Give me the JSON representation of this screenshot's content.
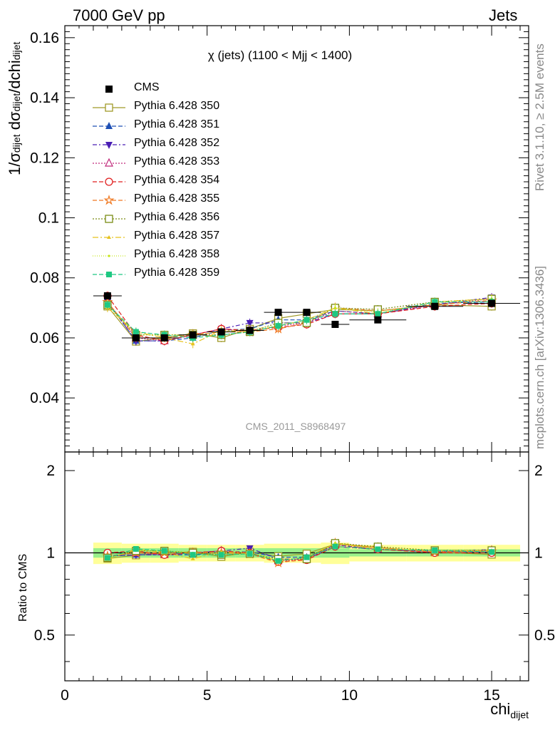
{
  "header": {
    "left": "7000 GeV pp",
    "right": "Jets"
  },
  "side_labels": {
    "rivet": "Rivet 3.1.10, ≥ 2.5M events",
    "mcplots": "mcplots.cern.ch [arXiv:1306.3436]"
  },
  "axes": {
    "ylabel_main": "1/σdijet dσdijet/dchidijet",
    "ylabel_ratio": "Ratio to CMS",
    "xlabel": "chidijet"
  },
  "chart_data": {
    "type": "scatter",
    "title": "χ (jets) (1100 < Mjj < 1400)",
    "watermark": "CMS_2011_S8968497",
    "xlabel": "chidijet",
    "ylabel": "1/σdijet dσdijet/dchidijet",
    "xlim": [
      0,
      16.3
    ],
    "ylim": [
      0.022,
      0.164
    ],
    "ratio_ylim": [
      0.34,
      2.34
    ],
    "ratio_ylabel": "Ratio to CMS",
    "x_ticks": [
      "0",
      "5",
      "10",
      "15"
    ],
    "y_ticks": [
      "0.04",
      "0.06",
      "0.08",
      "0.1",
      "0.12",
      "0.14",
      "0.16"
    ],
    "ratio_ticks": [
      "0.5",
      "1",
      "2"
    ],
    "x": [
      1.5,
      2.5,
      3.5,
      4.5,
      5.5,
      6.5,
      7.5,
      8.5,
      9.5,
      11.0,
      13.0,
      15.0
    ],
    "data": {
      "name": "CMS",
      "values": [
        0.074,
        0.06,
        0.06,
        0.061,
        0.062,
        0.0625,
        0.0685,
        0.0685,
        0.0645,
        0.066,
        0.0705,
        0.0715
      ],
      "band_outer": [
        0.91,
        0.92,
        0.92,
        0.93,
        0.93,
        0.93,
        0.92,
        0.92,
        0.91,
        0.93,
        0.93,
        0.93
      ],
      "band_outer_hi": [
        1.09,
        1.08,
        1.08,
        1.07,
        1.07,
        1.07,
        1.08,
        1.08,
        1.09,
        1.07,
        1.07,
        1.07
      ],
      "band_inner": [
        0.96,
        0.96,
        0.96,
        0.96,
        0.96,
        0.96,
        0.96,
        0.96,
        0.96,
        0.97,
        0.97,
        0.97
      ],
      "band_inner_hi": [
        1.04,
        1.04,
        1.04,
        1.04,
        1.04,
        1.04,
        1.04,
        1.04,
        1.04,
        1.03,
        1.03,
        1.03
      ]
    },
    "series": [
      {
        "name": "Pythia 6.428 350",
        "color": "#a09a28",
        "dash": "",
        "marker": "square-open",
        "values": [
          0.0705,
          0.0588,
          0.06,
          0.0615,
          0.06,
          0.063,
          0.0665,
          0.068,
          0.0695,
          0.069,
          0.071,
          0.0705
        ]
      },
      {
        "name": "Pythia 6.428 351",
        "color": "#1e4fb4",
        "dash": "6,3",
        "marker": "triangle-up",
        "values": [
          0.072,
          0.059,
          0.059,
          0.06,
          0.0625,
          0.063,
          0.066,
          0.066,
          0.069,
          0.068,
          0.0715,
          0.072
        ]
      },
      {
        "name": "Pythia 6.428 352",
        "color": "#4a1eb4",
        "dash": "6,3,2,3",
        "marker": "triangle-down",
        "values": [
          0.072,
          0.059,
          0.059,
          0.061,
          0.063,
          0.065,
          0.065,
          0.065,
          0.068,
          0.068,
          0.071,
          0.0735
        ]
      },
      {
        "name": "Pythia 6.428 353",
        "color": "#c0287a",
        "dash": "2,2",
        "marker": "triangle-open",
        "values": [
          0.072,
          0.06,
          0.059,
          0.061,
          0.063,
          0.062,
          0.064,
          0.065,
          0.069,
          0.068,
          0.071,
          0.073
        ]
      },
      {
        "name": "Pythia 6.428 354",
        "color": "#e01e1e",
        "dash": "6,3",
        "marker": "circle-open",
        "values": [
          0.074,
          0.061,
          0.059,
          0.061,
          0.063,
          0.0625,
          0.0635,
          0.0645,
          0.068,
          0.068,
          0.0705,
          0.0715
        ]
      },
      {
        "name": "Pythia 6.428 355",
        "color": "#f07820",
        "dash": "6,3",
        "marker": "star-open",
        "values": [
          0.072,
          0.06,
          0.06,
          0.061,
          0.062,
          0.062,
          0.063,
          0.065,
          0.07,
          0.069,
          0.071,
          0.0725
        ]
      },
      {
        "name": "Pythia 6.428 356",
        "color": "#7a8c14",
        "dash": "2,2",
        "marker": "square-open",
        "values": [
          0.071,
          0.061,
          0.061,
          0.061,
          0.061,
          0.062,
          0.065,
          0.065,
          0.07,
          0.0695,
          0.072,
          0.073
        ]
      },
      {
        "name": "Pythia 6.428 357",
        "color": "#e6c21e",
        "dash": "8,3,2,3",
        "marker": "tri",
        "values": [
          0.07,
          0.062,
          0.06,
          0.058,
          0.0625,
          0.062,
          0.064,
          0.066,
          0.07,
          0.068,
          0.072,
          0.073
        ]
      },
      {
        "name": "Pythia 6.428 358",
        "color": "#c8e61e",
        "dash": "1,2",
        "marker": "dot",
        "values": [
          0.071,
          0.061,
          0.061,
          0.061,
          0.062,
          0.063,
          0.064,
          0.066,
          0.07,
          0.0685,
          0.0715,
          0.073
        ]
      },
      {
        "name": "Pythia 6.428 359",
        "color": "#1ec882",
        "dash": "6,3",
        "marker": "square-filled",
        "values": [
          0.071,
          0.062,
          0.061,
          0.06,
          0.061,
          0.062,
          0.064,
          0.066,
          0.068,
          0.068,
          0.072,
          0.072
        ]
      }
    ]
  }
}
